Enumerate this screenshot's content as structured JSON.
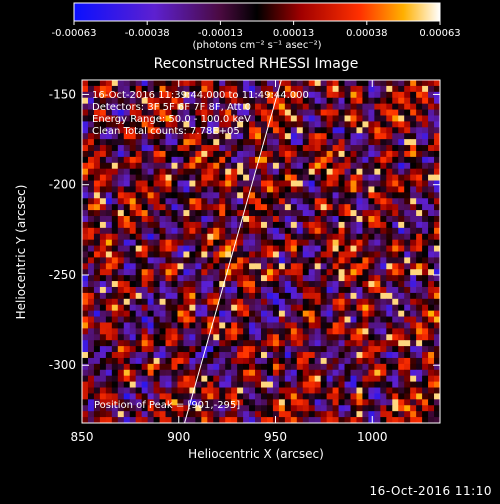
{
  "chart_data": {
    "type": "heatmap",
    "title": "Reconstructed RHESSI Image",
    "xlabel": "Heliocentric X (arcsec)",
    "ylabel": "Heliocentric Y (arcsec)",
    "xlim": [
      850,
      1035
    ],
    "ylim": [
      -332,
      -142
    ],
    "xticks": [
      850,
      900,
      950,
      1000
    ],
    "yticks": [
      -150,
      -200,
      -250,
      -300
    ],
    "colorbar": {
      "min": -0.00063,
      "max": 0.00063,
      "ticks": [
        "-0.00063",
        "-0.00038",
        "-0.00013",
        "0.00013",
        "0.00038",
        "0.00063"
      ],
      "units": "(photons cm⁻² s⁻¹ asec⁻²)"
    },
    "annotations": [
      "16-Oct-2016 11:39:44.000 to 11:49:44.000",
      "Detectors: 3F 5F 6F 7F 8F, Att 0",
      "Energy Range: 50.0 - 100.0 keV",
      "Clean    Total counts: 7.78E+05"
    ],
    "peak_label": "Position of Peak = [901,-295]",
    "peak": [
      901,
      -295
    ],
    "limb_line": [
      [
        953,
        -142
      ],
      [
        903,
        -332
      ]
    ],
    "grid": false
  },
  "footer": {
    "timestamp": "16-Oct-2016 11:10"
  },
  "colors": {
    "background": "#000000",
    "text": "#ffffff",
    "limb": "#ffffff"
  }
}
